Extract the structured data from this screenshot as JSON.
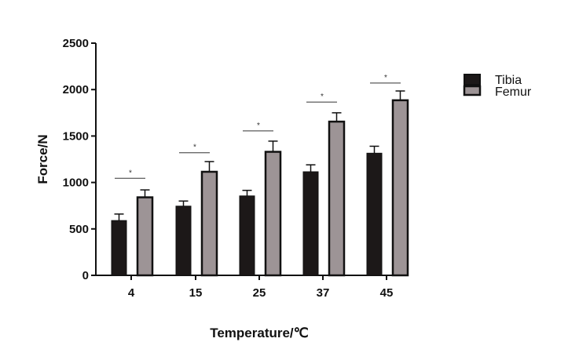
{
  "chart_data": {
    "type": "bar",
    "title": "",
    "xlabel": "Temperature/℃",
    "ylabel": "Force/N",
    "ylim": [
      0,
      2500
    ],
    "yticks": [
      0,
      500,
      1000,
      1500,
      2000,
      2500
    ],
    "categories": [
      "4",
      "15",
      "25",
      "37",
      "45"
    ],
    "series": [
      {
        "name": "Tibia",
        "color": "#1c1818",
        "values": [
          590,
          745,
          855,
          1115,
          1315
        ],
        "error": [
          70,
          55,
          60,
          75,
          75
        ]
      },
      {
        "name": "Femur",
        "color": "#9d9496",
        "values": [
          840,
          1115,
          1330,
          1655,
          1885
        ],
        "error": [
          80,
          110,
          115,
          95,
          100
        ]
      }
    ],
    "significance": {
      "label": "*",
      "heights": [
        1045,
        1320,
        1555,
        1865,
        2070
      ]
    },
    "legend": "right",
    "grid": false
  }
}
